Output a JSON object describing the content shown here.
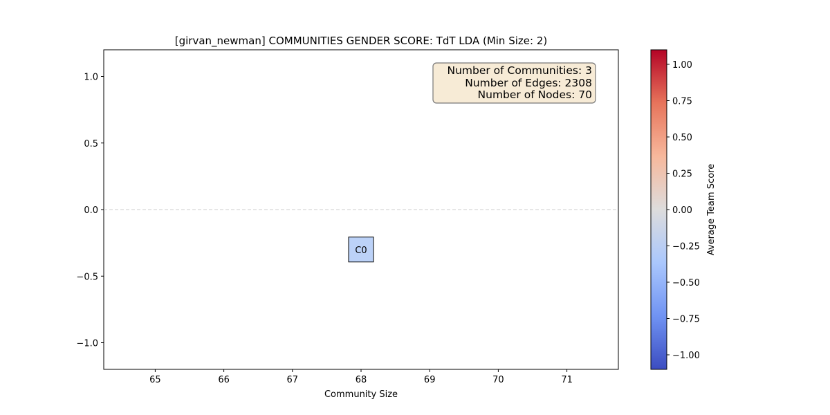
{
  "chart_data": {
    "type": "scatter",
    "title": "[girvan_newman] COMMUNITIES GENDER SCORE: TdT LDA (Min Size: 2)",
    "xlabel": "Community Size",
    "ylabel": "",
    "xlim": [
      64.25,
      71.75
    ],
    "ylim": [
      -1.2,
      1.2
    ],
    "xticks": [
      65,
      66,
      67,
      68,
      69,
      70,
      71
    ],
    "yticks": [
      1.0,
      0.5,
      0.0,
      -0.5,
      -1.0
    ],
    "ytick_labels": [
      "1.0",
      "0.5",
      "0.0",
      "−0.5",
      "−1.0"
    ],
    "reference_line_y": 0,
    "grid": false,
    "points": [
      {
        "label": "C0",
        "x": 68,
        "y": -0.3,
        "score": -0.4,
        "color": "#bcd2f8"
      }
    ],
    "info_box": {
      "lines": [
        "Number of Communities: 3",
        "Number of Edges: 2308",
        "Number of Nodes: 70"
      ],
      "background": "#f7ebd6",
      "border": "#777777"
    },
    "colorbar": {
      "label": "Average Team Score",
      "colormap": "coolwarm",
      "range": [
        -1.1,
        1.1
      ],
      "ticks": [
        1.0,
        0.75,
        0.5,
        0.25,
        0.0,
        -0.25,
        -0.5,
        -0.75,
        -1.0
      ],
      "tick_labels": [
        "1.00",
        "0.75",
        "0.50",
        "0.25",
        "0.00",
        "−0.25",
        "−0.50",
        "−0.75",
        "−1.00"
      ],
      "colors": [
        "#3b4cc0",
        "#7093f3",
        "#aac7fd",
        "#dddcdc",
        "#f7b89c",
        "#e7745b",
        "#b40426"
      ]
    }
  }
}
